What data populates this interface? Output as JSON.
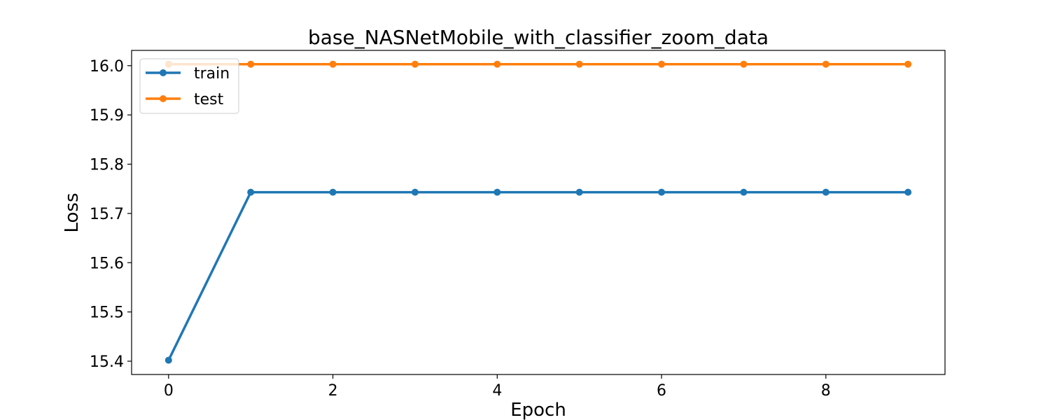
{
  "chart_data": {
    "type": "line",
    "title": "base_NASNetMobile_with_classifier_zoom_data",
    "xlabel": "Epoch",
    "ylabel": "Loss",
    "x": [
      0,
      1,
      2,
      3,
      4,
      5,
      6,
      7,
      8,
      9
    ],
    "xticks": [
      "0",
      "2",
      "4",
      "6",
      "8"
    ],
    "yticks": [
      "15.4",
      "15.5",
      "15.6",
      "15.7",
      "15.8",
      "15.9",
      "16.0"
    ],
    "xlim": [
      -0.45,
      9.45
    ],
    "ylim": [
      15.373,
      16.031
    ],
    "grid": false,
    "legend_position": "upper-left",
    "series": [
      {
        "name": "train",
        "color": "#1f77b4",
        "values": [
          15.402,
          15.743,
          15.743,
          15.743,
          15.743,
          15.743,
          15.743,
          15.743,
          15.743,
          15.743
        ]
      },
      {
        "name": "test",
        "color": "#ff7f0e",
        "values": [
          16.003,
          16.003,
          16.003,
          16.003,
          16.003,
          16.003,
          16.003,
          16.003,
          16.003,
          16.003
        ]
      }
    ]
  }
}
